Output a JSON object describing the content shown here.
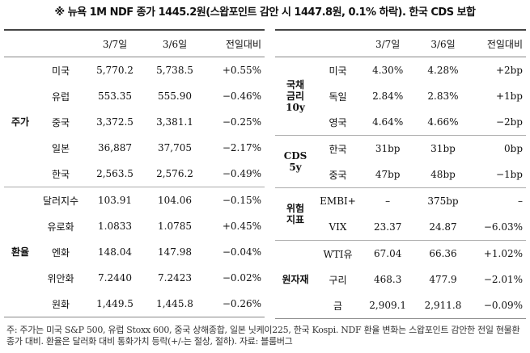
{
  "title": "※ 뉴욕 1M NDF 종가 1445.2원(스왑포인트 감안 시 1447.8원, 0.1% 하락). 한국 CDS 보합",
  "tables": [
    {
      "header": [
        "3/7일",
        "3/6일",
        "전일대비"
      ],
      "groups": [
        {
          "label": "주가",
          "rows": [
            [
              "미국",
              "5,770.2",
              "5,738.5",
              "+0.55%"
            ],
            [
              "유럽",
              "553.35",
              "555.90",
              "−0.46%"
            ],
            [
              "중국",
              "3,372.5",
              "3,381.1",
              "−0.25%"
            ],
            [
              "일본",
              "36,887",
              "37,705",
              "−2.17%"
            ],
            [
              "한국",
              "2,563.5",
              "2,576.2",
              "−0.49%"
            ]
          ]
        },
        {
          "label": "환율",
          "rows": [
            [
              "달러지수",
              "103.91",
              "104.06",
              "−0.15%"
            ],
            [
              "유로화",
              "1.0833",
              "1.0785",
              "+0.45%"
            ],
            [
              "엔화",
              "148.04",
              "147.98",
              "−0.04%"
            ],
            [
              "위안화",
              "7.2440",
              "7.2423",
              "−0.02%"
            ],
            [
              "원화",
              "1,449.5",
              "1,445.8",
              "−0.26%"
            ]
          ]
        }
      ]
    },
    {
      "header": [
        "3/7일",
        "3/6일",
        "전일대비"
      ],
      "groups": [
        {
          "label": "국채\n금리\n10y",
          "rows": [
            [
              "미국",
              "4.30%",
              "4.28%",
              "+2bp"
            ],
            [
              "독일",
              "2.84%",
              "2.83%",
              "+1bp"
            ],
            [
              "영국",
              "4.64%",
              "4.66%",
              "−2bp"
            ]
          ]
        },
        {
          "label": "CDS\n5y",
          "rows": [
            [
              "한국",
              "31bp",
              "31bp",
              "0bp"
            ],
            [
              "중국",
              "47bp",
              "48bp",
              "−1bp"
            ]
          ]
        },
        {
          "label": "위험\n지표",
          "rows": [
            [
              "EMBI+",
              "–",
              "375bp",
              "–"
            ],
            [
              "VIX",
              "23.37",
              "24.87",
              "−6.03%"
            ]
          ]
        },
        {
          "label": "원자재",
          "rows": [
            [
              "WTI유",
              "67.04",
              "66.36",
              "+1.02%"
            ],
            [
              "구리",
              "468.3",
              "477.9",
              "−2.01%"
            ],
            [
              "금",
              "2,909.1",
              "2,911.8",
              "−0.09%"
            ]
          ]
        }
      ]
    }
  ],
  "footnote": "주: 주가는 미국 S&P 500, 유럽 Stoxx 600, 중국 상해종합, 일본 닛케이225, 한국 Kospi. NDF 환율 변화는 스왑포인트 감안한 전일 현물환 종가 대비. 환율은 달러화 대비 통화가치 등락(+/-는 절상, 절하). 자료: 블룸버그"
}
